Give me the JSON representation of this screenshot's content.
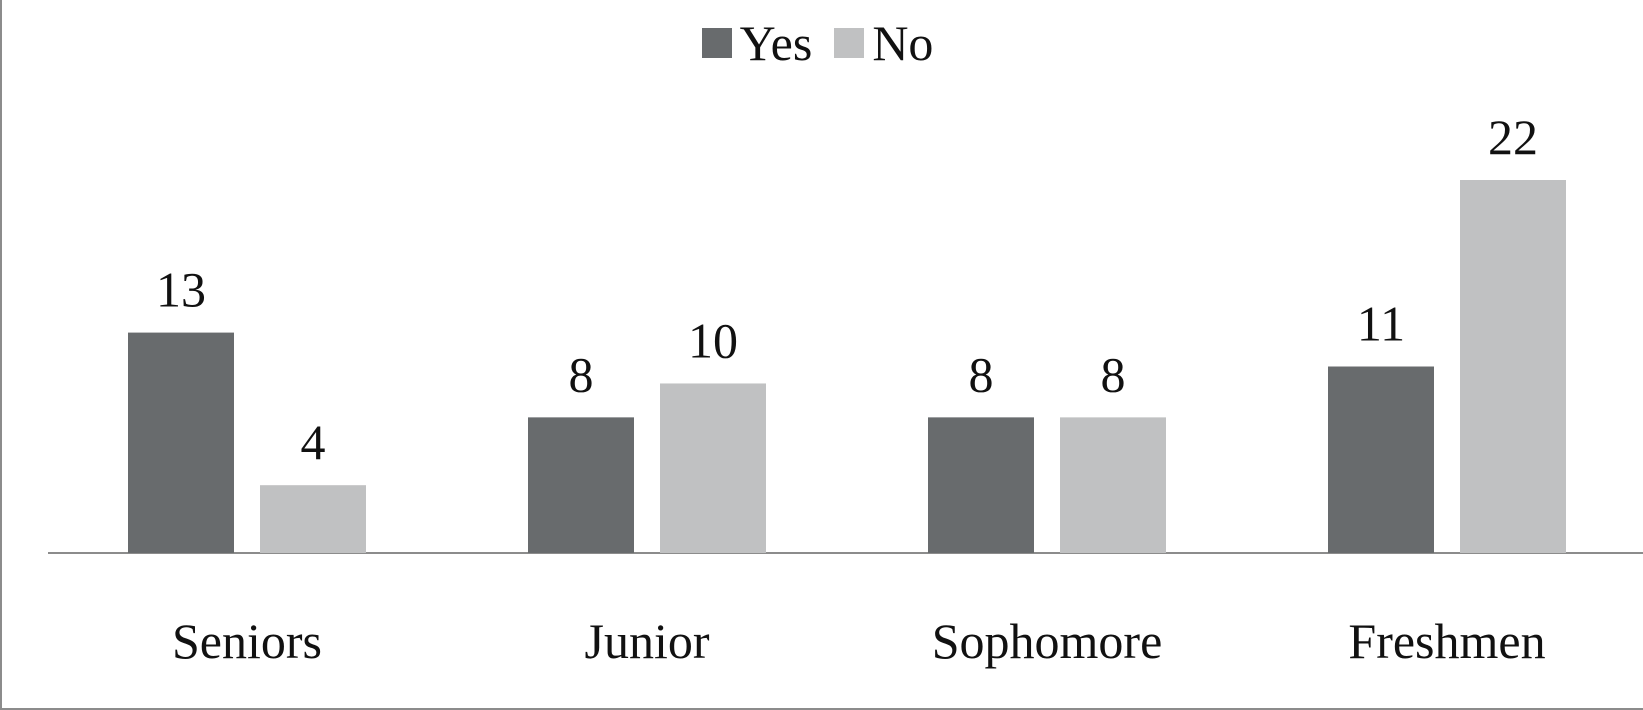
{
  "chart_data": {
    "type": "bar",
    "categories": [
      "Seniors",
      "Junior",
      "Sophomore",
      "Freshmen"
    ],
    "series": [
      {
        "name": "Yes",
        "values": [
          13,
          8,
          8,
          11
        ],
        "color": "#686b6d"
      },
      {
        "name": "No",
        "values": [
          4,
          10,
          8,
          22
        ],
        "color": "#c0c1c2"
      }
    ],
    "title": "",
    "xlabel": "",
    "ylabel": "",
    "ylim": [
      0,
      22
    ],
    "grid": false,
    "legend_position": "top-center",
    "data_labels": true
  }
}
